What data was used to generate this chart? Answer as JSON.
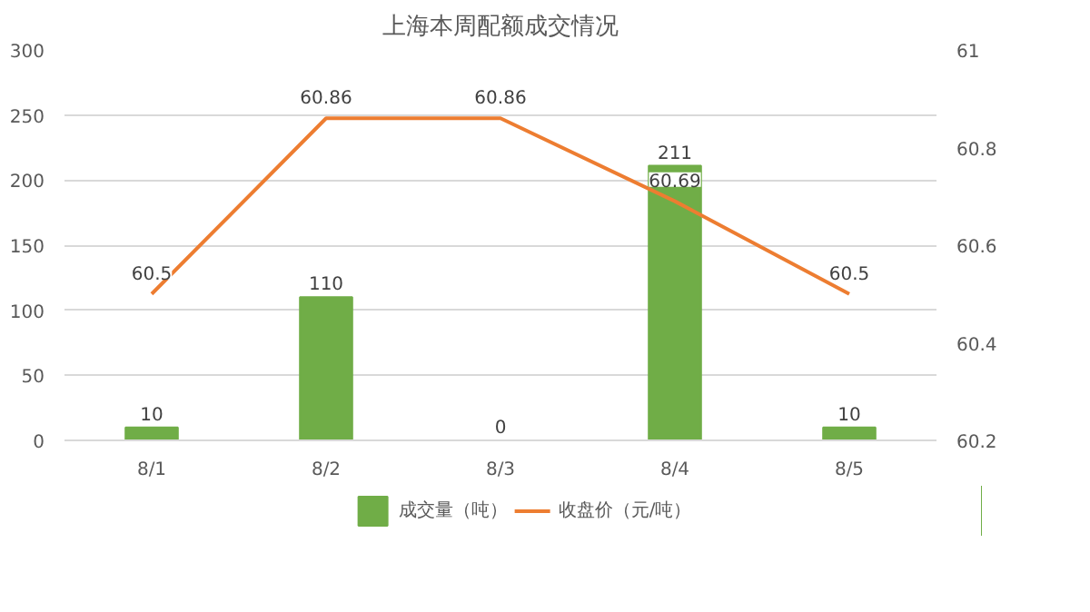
{
  "chart_data": {
    "type": "bar",
    "title": "上海本周配额成交情况",
    "categories": [
      "8/1",
      "8/2",
      "8/3",
      "8/4",
      "8/5"
    ],
    "series": [
      {
        "name": "成交量（吨）",
        "type": "bar",
        "color": "#70ad47",
        "values": [
          10,
          110,
          0,
          211,
          10
        ]
      },
      {
        "name": "收盘价（元/吨）",
        "type": "line",
        "axis": "y2",
        "color": "#ed7d31",
        "values": [
          60.5,
          60.86,
          60.86,
          60.69,
          60.5
        ]
      }
    ],
    "ylim": [
      0,
      300
    ],
    "yticks": [
      0,
      50,
      100,
      150,
      200,
      250,
      300
    ],
    "y2lim": [
      60.2,
      61
    ],
    "y2ticks": [
      {
        "value": 60.2,
        "label": "60.2"
      },
      {
        "value": 60.4,
        "label": "60.4"
      },
      {
        "value": 60.6,
        "label": "60.6"
      },
      {
        "value": 60.8,
        "label": "60.8"
      },
      {
        "value": 61,
        "label": "61"
      }
    ],
    "grid": "y",
    "legend": "bottom",
    "data_labels": true,
    "marker": "none",
    "line_style": "solid"
  }
}
